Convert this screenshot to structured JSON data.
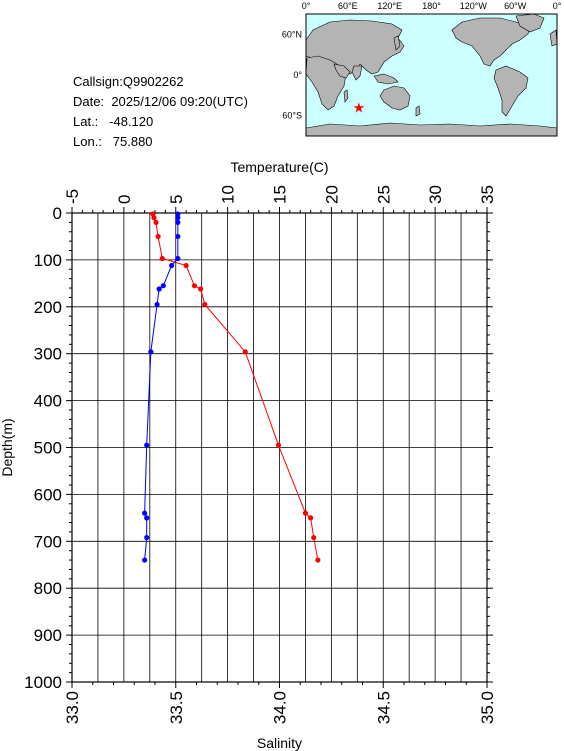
{
  "station": {
    "callsign_label": "Callsign:",
    "callsign": "Q9902262",
    "date_label": "Date:",
    "date": "2025/12/06 09:20(UTC)",
    "lat_label": "Lat.:",
    "lat": "-48.120",
    "lon_label": "Lon.:",
    "lon": "75.880"
  },
  "map": {
    "lon_ticks": [
      "0°",
      "60°E",
      "120°E",
      "180°",
      "120°W",
      "60°W",
      "0°"
    ],
    "lat_ticks": [
      "60°N",
      "0°",
      "60°S"
    ],
    "marker": {
      "lon": 75.88,
      "lat": -48.12,
      "symbol": "★",
      "color": "#ff0000"
    },
    "ocean_color": "#ccffff",
    "land_color": "#b4b4b4"
  },
  "chart_data": {
    "type": "line",
    "ylabel": "Depth(m)",
    "top_axis_label": "Temperature(C)",
    "bottom_axis_label": "Salinity",
    "ylim": [
      1000,
      0
    ],
    "temperature_range": [
      -5,
      35
    ],
    "salinity_range": [
      33.0,
      35.0
    ],
    "depth_ticks": [
      "0",
      "100",
      "200",
      "300",
      "400",
      "500",
      "600",
      "700",
      "800",
      "900",
      "1000"
    ],
    "temperature_ticks": [
      "-5",
      "0",
      "5",
      "10",
      "15",
      "20",
      "25",
      "30",
      "35"
    ],
    "salinity_ticks": [
      "33.0",
      "33.5",
      "34.0",
      "34.5",
      "35.0"
    ],
    "grid": true,
    "series": [
      {
        "name": "Temperature(C)",
        "color": "#ff0000",
        "axis": "top",
        "points": [
          {
            "depth": 2,
            "value": 2.8
          },
          {
            "depth": 10,
            "value": 2.9
          },
          {
            "depth": 20,
            "value": 3.1
          },
          {
            "depth": 50,
            "value": 3.3
          },
          {
            "depth": 97,
            "value": 3.7
          },
          {
            "depth": 112,
            "value": 6.0
          },
          {
            "depth": 155,
            "value": 6.8
          },
          {
            "depth": 162,
            "value": 7.4
          },
          {
            "depth": 195,
            "value": 7.8
          },
          {
            "depth": 296,
            "value": 11.7
          },
          {
            "depth": 495,
            "value": 14.9
          },
          {
            "depth": 640,
            "value": 17.5
          },
          {
            "depth": 650,
            "value": 18.0
          },
          {
            "depth": 692,
            "value": 18.3
          },
          {
            "depth": 740,
            "value": 18.7
          }
        ]
      },
      {
        "name": "Salinity",
        "color": "#0000ff",
        "axis": "bottom",
        "points": [
          {
            "depth": 2,
            "value": 33.51
          },
          {
            "depth": 10,
            "value": 33.51
          },
          {
            "depth": 20,
            "value": 33.51
          },
          {
            "depth": 50,
            "value": 33.51
          },
          {
            "depth": 97,
            "value": 33.51
          },
          {
            "depth": 112,
            "value": 33.48
          },
          {
            "depth": 155,
            "value": 33.44
          },
          {
            "depth": 162,
            "value": 33.42
          },
          {
            "depth": 195,
            "value": 33.41
          },
          {
            "depth": 296,
            "value": 33.38
          },
          {
            "depth": 495,
            "value": 33.36
          },
          {
            "depth": 640,
            "value": 33.35
          },
          {
            "depth": 650,
            "value": 33.36
          },
          {
            "depth": 692,
            "value": 33.36
          },
          {
            "depth": 740,
            "value": 33.35
          }
        ]
      }
    ]
  }
}
